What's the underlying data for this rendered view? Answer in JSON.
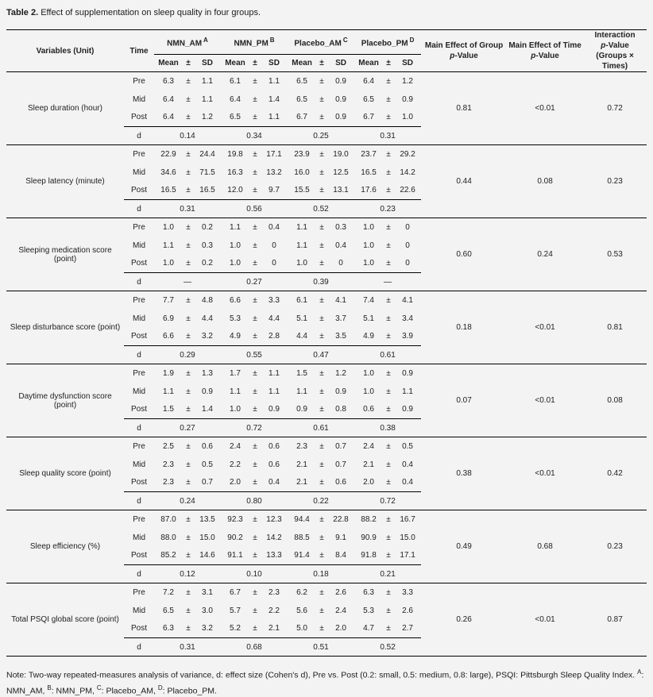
{
  "title": {
    "label": "Table 2.",
    "text": " Effect of supplementation on sleep quality in four groups."
  },
  "header": {
    "variables": "Variables (Unit)",
    "time": "Time",
    "groups": [
      {
        "name": "NMN_AM",
        "sup": "A"
      },
      {
        "name": "NMN_PM",
        "sup": "B"
      },
      {
        "name": "Placebo_AM",
        "sup": "C"
      },
      {
        "name": "Placebo_PM",
        "sup": "D"
      }
    ],
    "subcols": {
      "mean": "Mean",
      "pm": "±",
      "sd": "SD"
    },
    "effect_group": {
      "line1": "Main Effect of Group",
      "p": "p",
      "suffix": "-Value"
    },
    "effect_time": {
      "line1": "Main Effect of Time",
      "p": "p",
      "suffix": "-Value"
    },
    "interaction": {
      "line1": "Interaction",
      "p": "p",
      "suffix": "-Value",
      "line3": "(Groups × Times)"
    }
  },
  "pm_sign": "±",
  "d_label": "d",
  "variables": [
    {
      "name": "Sleep duration (hour)",
      "rows": [
        {
          "time": "Pre",
          "cells": [
            [
              "6.3",
              "1.1"
            ],
            [
              "6.1",
              "1.1"
            ],
            [
              "6.5",
              "0.9"
            ],
            [
              "6.4",
              "1.2"
            ]
          ]
        },
        {
          "time": "Mid",
          "cells": [
            [
              "6.4",
              "1.1"
            ],
            [
              "6.4",
              "1.4"
            ],
            [
              "6.5",
              "0.9"
            ],
            [
              "6.5",
              "0.9"
            ]
          ]
        },
        {
          "time": "Post",
          "cells": [
            [
              "6.4",
              "1.2"
            ],
            [
              "6.5",
              "1.1"
            ],
            [
              "6.7",
              "0.9"
            ],
            [
              "6.7",
              "1.0"
            ]
          ]
        }
      ],
      "d": [
        "0.14",
        "0.34",
        "0.25",
        "0.31"
      ],
      "p_group": "0.81",
      "p_time": "<0.01",
      "p_interaction": "0.72"
    },
    {
      "name": "Sleep latency (minute)",
      "rows": [
        {
          "time": "Pre",
          "cells": [
            [
              "22.9",
              "24.4"
            ],
            [
              "19.8",
              "17.1"
            ],
            [
              "23.9",
              "19.0"
            ],
            [
              "23.7",
              "29.2"
            ]
          ]
        },
        {
          "time": "Mid",
          "cells": [
            [
              "34.6",
              "71.5"
            ],
            [
              "16.3",
              "13.2"
            ],
            [
              "16.0",
              "12.5"
            ],
            [
              "16.5",
              "14.2"
            ]
          ]
        },
        {
          "time": "Post",
          "cells": [
            [
              "16.5",
              "16.5"
            ],
            [
              "12.0",
              "9.7"
            ],
            [
              "15.5",
              "13.1"
            ],
            [
              "17.6",
              "22.6"
            ]
          ]
        }
      ],
      "d": [
        "0.31",
        "0.56",
        "0.52",
        "0.23"
      ],
      "p_group": "0.44",
      "p_time": "0.08",
      "p_interaction": "0.23"
    },
    {
      "name": "Sleeping medication score (point)",
      "rows": [
        {
          "time": "Pre",
          "cells": [
            [
              "1.0",
              "0.2"
            ],
            [
              "1.1",
              "0.4"
            ],
            [
              "1.1",
              "0.3"
            ],
            [
              "1.0",
              "0"
            ]
          ]
        },
        {
          "time": "Mid",
          "cells": [
            [
              "1.1",
              "0.3"
            ],
            [
              "1.0",
              "0"
            ],
            [
              "1.1",
              "0.4"
            ],
            [
              "1.0",
              "0"
            ]
          ]
        },
        {
          "time": "Post",
          "cells": [
            [
              "1.0",
              "0.2"
            ],
            [
              "1.0",
              "0"
            ],
            [
              "1.0",
              "0"
            ],
            [
              "1.0",
              "0"
            ]
          ]
        }
      ],
      "d": [
        "—",
        "0.27",
        "0.39",
        "—"
      ],
      "p_group": "0.60",
      "p_time": "0.24",
      "p_interaction": "0.53"
    },
    {
      "name": "Sleep disturbance score (point)",
      "rows": [
        {
          "time": "Pre",
          "cells": [
            [
              "7.7",
              "4.8"
            ],
            [
              "6.6",
              "3.3"
            ],
            [
              "6.1",
              "4.1"
            ],
            [
              "7.4",
              "4.1"
            ]
          ]
        },
        {
          "time": "Mid",
          "cells": [
            [
              "6.9",
              "4.4"
            ],
            [
              "5.3",
              "4.4"
            ],
            [
              "5.1",
              "3.7"
            ],
            [
              "5.1",
              "3.4"
            ]
          ]
        },
        {
          "time": "Post",
          "cells": [
            [
              "6.6",
              "3.2"
            ],
            [
              "4.9",
              "2.8"
            ],
            [
              "4.4",
              "3.5"
            ],
            [
              "4.9",
              "3.9"
            ]
          ]
        }
      ],
      "d": [
        "0.29",
        "0.55",
        "0.47",
        "0.61"
      ],
      "p_group": "0.18",
      "p_time": "<0.01",
      "p_interaction": "0.81"
    },
    {
      "name": "Daytime dysfunction score (point)",
      "rows": [
        {
          "time": "Pre",
          "cells": [
            [
              "1.9",
              "1.3"
            ],
            [
              "1.7",
              "1.1"
            ],
            [
              "1.5",
              "1.2"
            ],
            [
              "1.0",
              "0.9"
            ]
          ]
        },
        {
          "time": "Mid",
          "cells": [
            [
              "1.1",
              "0.9"
            ],
            [
              "1.1",
              "1.1"
            ],
            [
              "1.1",
              "0.9"
            ],
            [
              "1.0",
              "1.1"
            ]
          ]
        },
        {
          "time": "Post",
          "cells": [
            [
              "1.5",
              "1.4"
            ],
            [
              "1.0",
              "0.9"
            ],
            [
              "0.9",
              "0.8"
            ],
            [
              "0.6",
              "0.9"
            ]
          ]
        }
      ],
      "d": [
        "0.27",
        "0.72",
        "0.61",
        "0.38"
      ],
      "p_group": "0.07",
      "p_time": "<0.01",
      "p_interaction": "0.08"
    },
    {
      "name": "Sleep quality score (point)",
      "rows": [
        {
          "time": "Pre",
          "cells": [
            [
              "2.5",
              "0.6"
            ],
            [
              "2.4",
              "0.6"
            ],
            [
              "2.3",
              "0.7"
            ],
            [
              "2.4",
              "0.5"
            ]
          ]
        },
        {
          "time": "Mid",
          "cells": [
            [
              "2.3",
              "0.5"
            ],
            [
              "2.2",
              "0.6"
            ],
            [
              "2.1",
              "0.7"
            ],
            [
              "2.1",
              "0.4"
            ]
          ]
        },
        {
          "time": "Post",
          "cells": [
            [
              "2.3",
              "0.7"
            ],
            [
              "2.0",
              "0.4"
            ],
            [
              "2.1",
              "0.6"
            ],
            [
              "2.0",
              "0.4"
            ]
          ]
        }
      ],
      "d": [
        "0.24",
        "0.80",
        "0.22",
        "0.72"
      ],
      "p_group": "0.38",
      "p_time": "<0.01",
      "p_interaction": "0.42"
    },
    {
      "name": "Sleep efficiency (%)",
      "rows": [
        {
          "time": "Pre",
          "cells": [
            [
              "87.0",
              "13.5"
            ],
            [
              "92.3",
              "12.3"
            ],
            [
              "94.4",
              "22.8"
            ],
            [
              "88.2",
              "16.7"
            ]
          ]
        },
        {
          "time": "Mid",
          "cells": [
            [
              "88.0",
              "15.0"
            ],
            [
              "90.2",
              "14.2"
            ],
            [
              "88.5",
              "9.1"
            ],
            [
              "90.9",
              "15.0"
            ]
          ]
        },
        {
          "time": "Post",
          "cells": [
            [
              "85.2",
              "14.6"
            ],
            [
              "91.1",
              "13.3"
            ],
            [
              "91.4",
              "8.4"
            ],
            [
              "91.8",
              "17.1"
            ]
          ]
        }
      ],
      "d": [
        "0.12",
        "0.10",
        "0.18",
        "0.21"
      ],
      "p_group": "0.49",
      "p_time": "0.68",
      "p_interaction": "0.23"
    },
    {
      "name": "Total PSQI global score (point)",
      "rows": [
        {
          "time": "Pre",
          "cells": [
            [
              "7.2",
              "3.1"
            ],
            [
              "6.7",
              "2.3"
            ],
            [
              "6.2",
              "2.6"
            ],
            [
              "6.3",
              "3.3"
            ]
          ]
        },
        {
          "time": "Mid",
          "cells": [
            [
              "6.5",
              "3.0"
            ],
            [
              "5.7",
              "2.2"
            ],
            [
              "5.6",
              "2.4"
            ],
            [
              "5.3",
              "2.6"
            ]
          ]
        },
        {
          "time": "Post",
          "cells": [
            [
              "6.3",
              "3.2"
            ],
            [
              "5.2",
              "2.1"
            ],
            [
              "5.0",
              "2.0"
            ],
            [
              "4.7",
              "2.7"
            ]
          ]
        }
      ],
      "d": [
        "0.31",
        "0.68",
        "0.51",
        "0.52"
      ],
      "p_group": "0.26",
      "p_time": "<0.01",
      "p_interaction": "0.87"
    }
  ],
  "note": {
    "segments": [
      {
        "sup": false,
        "text": "Note: Two-way repeated-measures analysis of variance, d: effect size (Cohen's d), Pre vs. Post (0.2: small, 0.5: medium, 0.8: large), PSQI: Pittsburgh Sleep Quality Index. "
      },
      {
        "sup": true,
        "text": "A"
      },
      {
        "sup": false,
        "text": ": NMN_AM, "
      },
      {
        "sup": true,
        "text": "B"
      },
      {
        "sup": false,
        "text": ": NMN_PM, "
      },
      {
        "sup": true,
        "text": "C"
      },
      {
        "sup": false,
        "text": ": Placebo_AM, "
      },
      {
        "sup": true,
        "text": "D"
      },
      {
        "sup": false,
        "text": ": Placebo_PM."
      }
    ]
  },
  "colors": {
    "background": "#f3f3f3",
    "text": "#222222",
    "rule": "#000000"
  }
}
